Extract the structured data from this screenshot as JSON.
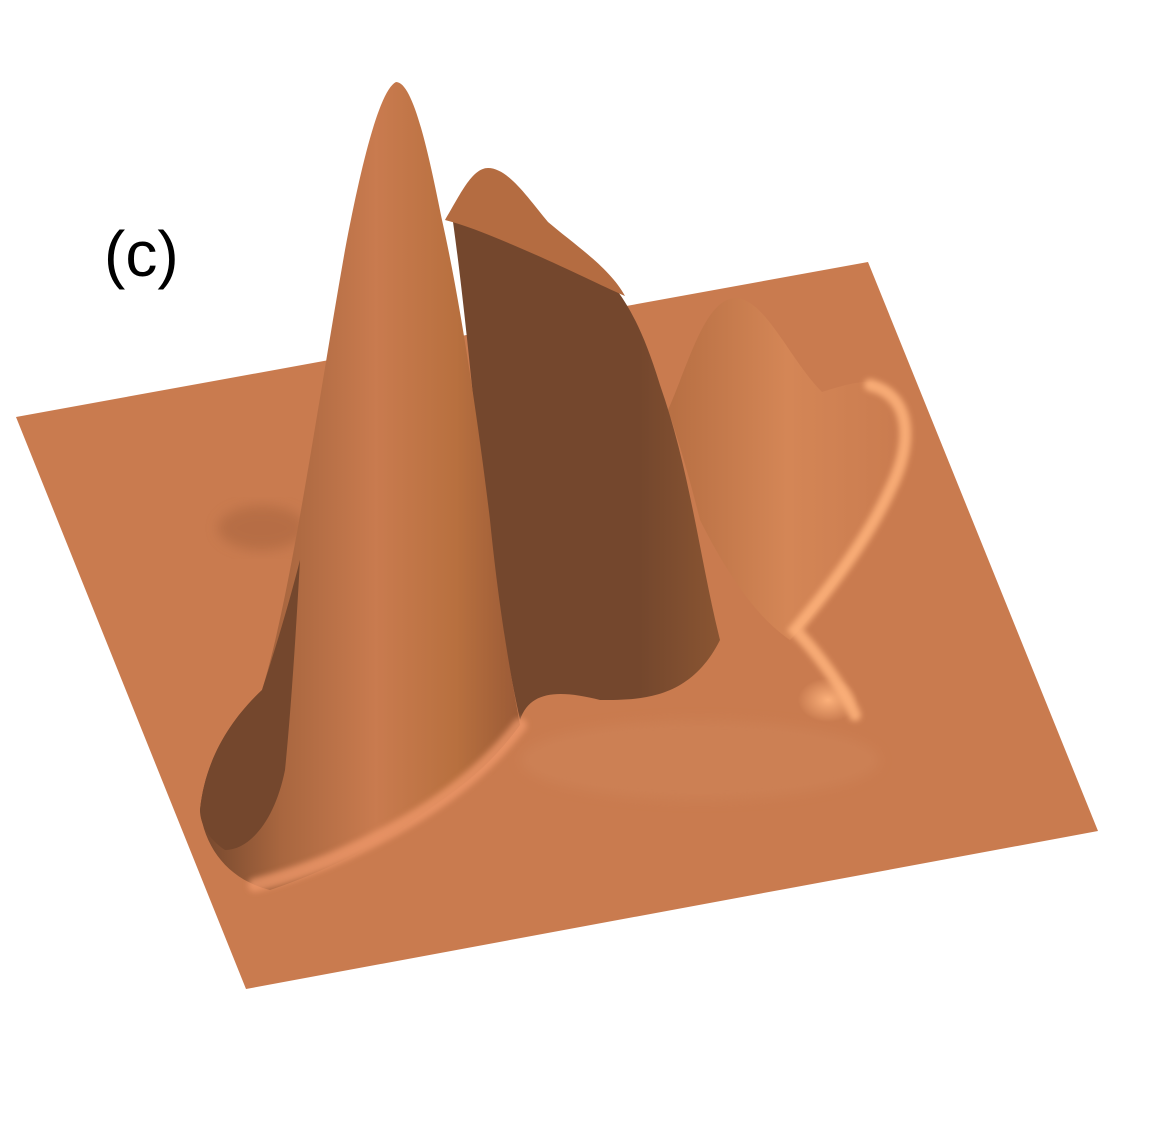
{
  "panel_label": "(c)",
  "colors": {
    "background": "#ffffff",
    "surface_base": "#c97b4f",
    "surface_highlight": "#f5a36f",
    "surface_shadow": "#74472d",
    "label_text": "#000000"
  },
  "figure": {
    "kind": "3d-surface-plot",
    "peaks": 3,
    "axes_visible": false
  }
}
